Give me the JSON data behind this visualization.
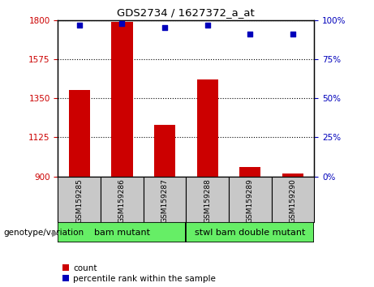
{
  "title": "GDS2734 / 1627372_a_at",
  "samples": [
    "GSM159285",
    "GSM159286",
    "GSM159287",
    "GSM159288",
    "GSM159289",
    "GSM159290"
  ],
  "counts": [
    1400,
    1790,
    1195,
    1460,
    955,
    915
  ],
  "percentiles": [
    97,
    98,
    95,
    97,
    91,
    91
  ],
  "ylim_left": [
    900,
    1800
  ],
  "yticks_left": [
    900,
    1125,
    1350,
    1575,
    1800
  ],
  "ylim_right": [
    0,
    100
  ],
  "yticks_right": [
    0,
    25,
    50,
    75,
    100
  ],
  "bar_color": "#cc0000",
  "dot_color": "#0000bb",
  "group1_label": "bam mutant",
  "group2_label": "stwl bam double mutant",
  "group_color": "#66ee66",
  "tick_color_left": "#cc0000",
  "tick_color_right": "#0000bb",
  "xlabel_area_color": "#c8c8c8",
  "genotype_label": "genotype/variation",
  "legend_count": "count",
  "legend_percentile": "percentile rank within the sample",
  "legend_count_color": "#cc0000",
  "legend_dot_color": "#0000bb"
}
